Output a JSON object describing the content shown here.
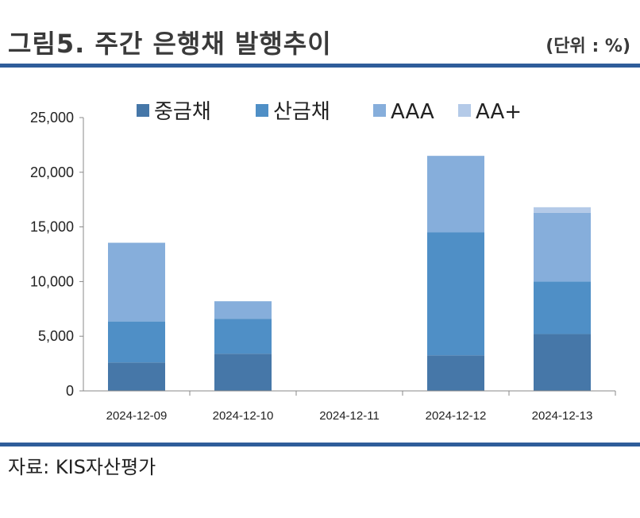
{
  "header": {
    "title": "그림5. 주간 은행채 발행추이",
    "unit": "(단위 : %)"
  },
  "footer": {
    "source": "자료: KIS자산평가"
  },
  "colors": {
    "rule": "#2f5d9a",
    "axis": "#888888"
  },
  "chart_data": {
    "type": "bar",
    "stacked": true,
    "categories": [
      "2024-12-09",
      "2024-12-10",
      "2024-12-11",
      "2024-12-12",
      "2024-12-13"
    ],
    "series": [
      {
        "name": "중금채",
        "color": "#4677a8",
        "values": [
          2600,
          3400,
          0,
          3250,
          5200
        ]
      },
      {
        "name": "산금채",
        "color": "#4f8fc6",
        "values": [
          3750,
          3200,
          0,
          11250,
          4800
        ]
      },
      {
        "name": "AAA",
        "color": "#86aedb",
        "values": [
          7200,
          1600,
          0,
          7000,
          6300
        ]
      },
      {
        "name": "AA+",
        "color": "#b4cae8",
        "values": [
          0,
          0,
          0,
          0,
          500
        ]
      }
    ],
    "ylim": [
      0,
      25000
    ],
    "yticks": [
      "25,000",
      "20,000",
      "15,000",
      "10,000",
      "5,000",
      "0"
    ],
    "legend_position": "top"
  }
}
